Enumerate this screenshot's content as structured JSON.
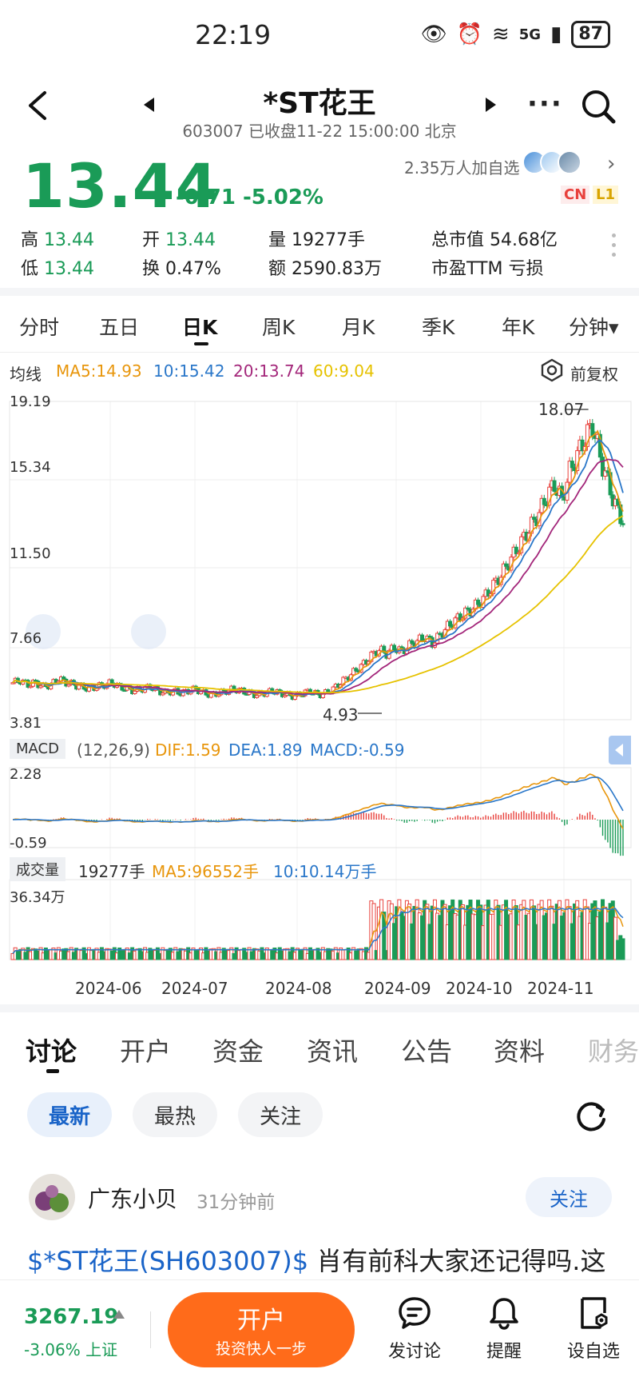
{
  "status": {
    "time": "22:19",
    "network": "5G",
    "battery": "87"
  },
  "header": {
    "title": "*ST花王",
    "subtitle": "603007 已收盘11-22 15:00:00 北京"
  },
  "quote": {
    "price": "13.44",
    "change": "-0.71 -5.02%",
    "follow_count": "2.35万人加自选",
    "badge_cn": "CN",
    "badge_l1": "L1",
    "stats": {
      "high_label": "高",
      "high": "13.44",
      "low_label": "低",
      "low": "13.44",
      "open_label": "开",
      "open": "13.44",
      "turnover_label": "换",
      "turnover": "0.47%",
      "volume_label": "量",
      "volume": "19277手",
      "amount_label": "额",
      "amount": "2590.83万",
      "mktcap_label": "总市值",
      "mktcap": "54.68亿",
      "pe_label": "市盈TTM",
      "pe": "亏损"
    }
  },
  "period_tabs": [
    "分时",
    "五日",
    "日K",
    "周K",
    "月K",
    "季K",
    "年K",
    "分钟▾"
  ],
  "ma_legend": {
    "title": "均线",
    "ma5": "MA5:14.93",
    "ma10": "10:15.42",
    "ma20": "20:13.74",
    "ma60": "60:9.04",
    "restore": "前复权"
  },
  "colors": {
    "up": "#e8413c",
    "down": "#1a9b57",
    "ma5": "#e8960c",
    "ma10": "#2a77c9",
    "ma20": "#a3267a",
    "ma60": "#e6c200",
    "accent": "#ff6b1a",
    "link": "#1a64c8"
  },
  "price_axis": [
    "19.19",
    "15.34",
    "11.50",
    "7.66",
    "3.81"
  ],
  "annotations": {
    "high": "18.07",
    "low": "4.93"
  },
  "macd": {
    "label": "MACD",
    "params": "(12,26,9)",
    "dif": "DIF:1.59",
    "dea": "DEA:1.89",
    "macd": "MACD:-0.59",
    "axis_top": "2.28",
    "axis_bottom": "-0.59"
  },
  "volume": {
    "label": "成交量",
    "value": "19277手",
    "ma5": "MA5:96552手",
    "ma10": "10:10.14万手",
    "axis_top": "36.34万"
  },
  "dates": [
    "2024-06",
    "2024-07",
    "2024-08",
    "2024-09",
    "2024-10",
    "2024-11"
  ],
  "chart_data": {
    "type": "candlestick",
    "price_range": [
      3.81,
      19.19
    ],
    "series": [
      {
        "name": "MA5",
        "last": 14.93
      },
      {
        "name": "10",
        "last": 15.42
      },
      {
        "name": "20",
        "last": 13.74
      },
      {
        "name": "60",
        "last": 9.04
      }
    ],
    "close_trend": [
      5.6,
      5.7,
      5.5,
      5.6,
      5.4,
      5.5,
      5.8,
      5.6,
      5.5,
      5.4,
      5.3,
      5.4,
      5.5,
      5.6,
      5.4,
      5.3,
      5.2,
      5.3,
      5.4,
      5.2,
      5.1,
      5.2,
      5.1,
      5.2,
      5.3,
      5.1,
      5.0,
      5.1,
      5.2,
      5.3,
      5.2,
      5.1,
      5.0,
      5.1,
      5.2,
      5.1,
      5.0,
      4.93,
      5.1,
      5.2,
      5.0,
      5.1,
      5.3,
      5.6,
      5.9,
      6.2,
      6.5,
      6.9,
      7.2,
      7.0,
      7.3,
      7.1,
      7.4,
      7.6,
      7.8,
      7.5,
      7.9,
      8.3,
      8.6,
      8.9,
      9.1,
      9.4,
      9.8,
      10.3,
      10.8,
      11.4,
      12.0,
      12.6,
      13.2,
      13.8,
      14.6,
      15.2,
      14.4,
      15.8,
      16.6,
      17.4,
      18.07,
      16.5,
      15.3,
      14.15,
      13.44
    ]
  },
  "discussion": {
    "tabs": [
      "讨论",
      "开户",
      "资金",
      "资讯",
      "公告",
      "资料",
      "财务"
    ],
    "filters": [
      "最新",
      "最热",
      "关注"
    ],
    "post": {
      "user": "广东小贝",
      "time": "31分钟前",
      "follow": "关注",
      "link": "$*ST花王(SH603007)$",
      "text": " 肖有前科大家还记得吗.这"
    }
  },
  "bottom": {
    "index_value": "3267.19",
    "index_sub": "-3.06% 上证",
    "open_btn": "开户",
    "open_btn_sub": "投资快人一步",
    "nav": [
      "发讨论",
      "提醒",
      "设自选"
    ]
  }
}
